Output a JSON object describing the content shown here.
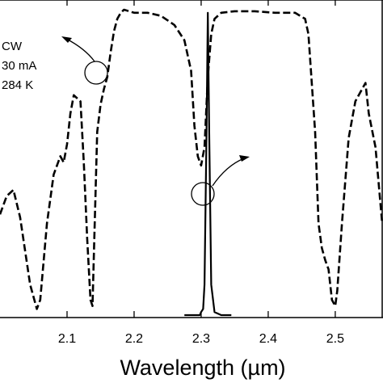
{
  "chart_data": {
    "type": "line",
    "title": "",
    "xlabel": "Wavelength (µm)",
    "ylabel": "",
    "xlim": [
      2.0,
      2.57
    ],
    "ylim": [
      0,
      1
    ],
    "x_ticks": [
      {
        "value": 2.1,
        "label": "2.1"
      },
      {
        "value": 2.2,
        "label": "2.2"
      },
      {
        "value": 2.3,
        "label": "2.3"
      },
      {
        "value": 2.4,
        "label": "2.4"
      },
      {
        "value": 2.5,
        "label": "2.5"
      }
    ],
    "annotation_lines": [
      "CW",
      "30 mA",
      "284 K"
    ],
    "series": [
      {
        "style": "dashed",
        "color": "#000000",
        "x": [
          2.0,
          2.01,
          2.02,
          2.03,
          2.045,
          2.055,
          2.06,
          2.07,
          2.08,
          2.09,
          2.095,
          2.1,
          2.105,
          2.11,
          2.12,
          2.125,
          2.13,
          2.135,
          2.138,
          2.14,
          2.145,
          2.15,
          2.155,
          2.16,
          2.165,
          2.17,
          2.175,
          2.18,
          2.185,
          2.2,
          2.22,
          2.24,
          2.26,
          2.275,
          2.285,
          2.29,
          2.295,
          2.3,
          2.305,
          2.31,
          2.315,
          2.32,
          2.33,
          2.35,
          2.38,
          2.41,
          2.44,
          2.455,
          2.46,
          2.47,
          2.475,
          2.48,
          2.485,
          2.49,
          2.495,
          2.5,
          2.503,
          2.51,
          2.52,
          2.53,
          2.54,
          2.545,
          2.55,
          2.56,
          2.57
        ],
        "y": [
          0.33,
          0.39,
          0.41,
          0.32,
          0.1,
          0.02,
          0.05,
          0.3,
          0.46,
          0.52,
          0.5,
          0.56,
          0.66,
          0.72,
          0.7,
          0.5,
          0.25,
          0.05,
          0.03,
          0.2,
          0.6,
          0.69,
          0.74,
          0.78,
          0.86,
          0.93,
          0.97,
          0.99,
          1.0,
          0.99,
          0.99,
          0.98,
          0.95,
          0.9,
          0.8,
          0.62,
          0.52,
          0.49,
          0.55,
          0.78,
          0.92,
          0.97,
          0.99,
          0.995,
          0.995,
          0.99,
          0.99,
          0.97,
          0.92,
          0.6,
          0.3,
          0.22,
          0.18,
          0.15,
          0.05,
          0.03,
          0.08,
          0.3,
          0.58,
          0.7,
          0.74,
          0.76,
          0.66,
          0.55,
          0.3
        ]
      },
      {
        "style": "solid",
        "color": "#000000",
        "x": [
          2.275,
          2.29,
          2.298,
          2.3,
          2.303,
          2.305,
          2.308,
          2.31,
          2.312,
          2.315,
          2.32,
          2.33,
          2.345
        ],
        "y": [
          0.0,
          0.0,
          0.0,
          0.01,
          0.02,
          0.1,
          0.6,
          0.99,
          0.6,
          0.1,
          0.01,
          0.0,
          0.0
        ]
      }
    ]
  }
}
